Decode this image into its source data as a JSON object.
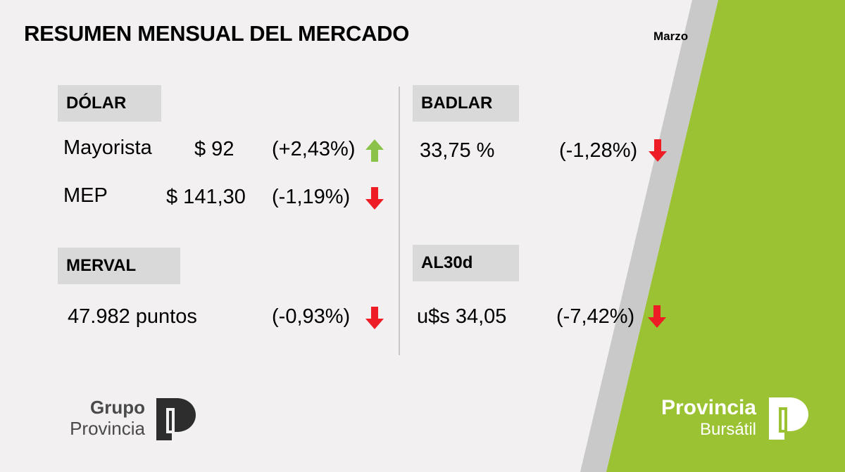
{
  "title": "RESUMEN MENSUAL DEL MERCADO",
  "month": "Marzo",
  "dolar": {
    "label": "DÓLAR",
    "rows": [
      {
        "name": "Mayorista",
        "value": "$ 92",
        "change": "(+2,43%)",
        "direction": "up"
      },
      {
        "name": "MEP",
        "value": "$ 141,30",
        "change": "(-1,19%)",
        "direction": "down"
      }
    ]
  },
  "merval": {
    "label": "MERVAL",
    "value": "47.982 puntos",
    "change": "(-0,93%)",
    "direction": "down"
  },
  "badlar": {
    "label": "BADLAR",
    "value": "33,75 %",
    "change": "(-1,28%)",
    "direction": "down"
  },
  "al30d": {
    "label": "AL30d",
    "value": "u$s 34,05",
    "change": "(-7,42%)",
    "direction": "down"
  },
  "logos": {
    "grupo_provincia": {
      "line1": "Grupo",
      "line2": "Provincia"
    },
    "provincia_bursatil": {
      "line1": "Provincia",
      "line2": "Bursátil"
    }
  },
  "colors": {
    "up_arrow": "#8bc34a",
    "down_arrow": "#ee1c25",
    "brand_green": "#9ac232",
    "stripe_gray": "#c9c9c9",
    "label_bg": "#d9d9d9"
  }
}
